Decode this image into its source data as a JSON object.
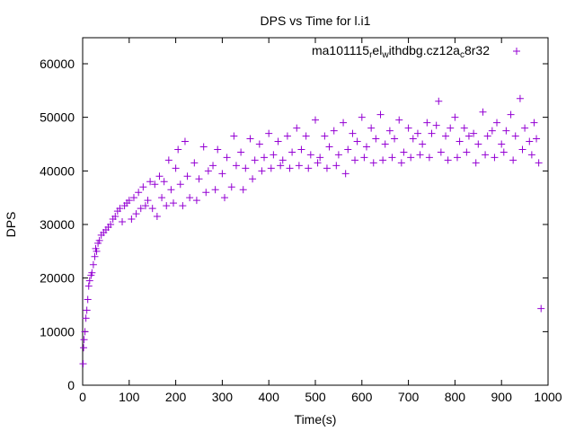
{
  "chart_data": {
    "type": "scatter",
    "title": "DPS vs Time for l.i1",
    "xlabel": "Time(s)",
    "ylabel": "DPS",
    "xlim": [
      0,
      1000
    ],
    "ylim": [
      0,
      65000
    ],
    "xticks": [
      0,
      100,
      200,
      300,
      400,
      500,
      600,
      700,
      800,
      900,
      1000
    ],
    "yticks": [
      0,
      10000,
      20000,
      30000,
      40000,
      50000,
      60000
    ],
    "grid": false,
    "legend_position": "top-right",
    "series": [
      {
        "name": "ma101115_rel_withdbg.cz12a_c8r32",
        "legend_label_parts": [
          "ma101115",
          "r",
          "el",
          "w",
          "ithdbg.cz12a",
          "c",
          "8r32"
        ],
        "color": "#9400D3",
        "marker": "plus",
        "points": [
          [
            1,
            4000
          ],
          [
            2,
            7000
          ],
          [
            3,
            8500
          ],
          [
            5,
            10000
          ],
          [
            7,
            12500
          ],
          [
            9,
            14000
          ],
          [
            11,
            16000
          ],
          [
            13,
            18500
          ],
          [
            15,
            19500
          ],
          [
            18,
            20500
          ],
          [
            20,
            21000
          ],
          [
            23,
            22500
          ],
          [
            26,
            24000
          ],
          [
            28,
            25500
          ],
          [
            30,
            25000
          ],
          [
            33,
            26500
          ],
          [
            36,
            27000
          ],
          [
            40,
            28000
          ],
          [
            45,
            28500
          ],
          [
            50,
            29000
          ],
          [
            55,
            29500
          ],
          [
            60,
            30000
          ],
          [
            65,
            31000
          ],
          [
            70,
            31500
          ],
          [
            75,
            32500
          ],
          [
            80,
            33000
          ],
          [
            85,
            30500
          ],
          [
            90,
            33500
          ],
          [
            95,
            34000
          ],
          [
            100,
            34500
          ],
          [
            105,
            31000
          ],
          [
            110,
            35000
          ],
          [
            115,
            32000
          ],
          [
            120,
            36000
          ],
          [
            125,
            33000
          ],
          [
            130,
            37000
          ],
          [
            135,
            33500
          ],
          [
            140,
            34500
          ],
          [
            145,
            38000
          ],
          [
            150,
            33000
          ],
          [
            155,
            37500
          ],
          [
            160,
            31500
          ],
          [
            165,
            39000
          ],
          [
            170,
            35000
          ],
          [
            175,
            38000
          ],
          [
            180,
            33500
          ],
          [
            185,
            42000
          ],
          [
            190,
            36500
          ],
          [
            195,
            34000
          ],
          [
            200,
            40500
          ],
          [
            205,
            44000
          ],
          [
            210,
            37500
          ],
          [
            215,
            33500
          ],
          [
            220,
            45500
          ],
          [
            225,
            39000
          ],
          [
            230,
            35000
          ],
          [
            240,
            41500
          ],
          [
            245,
            34500
          ],
          [
            250,
            38500
          ],
          [
            260,
            44500
          ],
          [
            265,
            36000
          ],
          [
            270,
            40000
          ],
          [
            280,
            41000
          ],
          [
            285,
            36500
          ],
          [
            290,
            44000
          ],
          [
            300,
            39500
          ],
          [
            305,
            35000
          ],
          [
            310,
            42500
          ],
          [
            320,
            37000
          ],
          [
            325,
            46500
          ],
          [
            330,
            41000
          ],
          [
            340,
            43500
          ],
          [
            345,
            36500
          ],
          [
            350,
            40500
          ],
          [
            360,
            46000
          ],
          [
            365,
            38500
          ],
          [
            370,
            42000
          ],
          [
            380,
            45000
          ],
          [
            385,
            40000
          ],
          [
            390,
            42500
          ],
          [
            400,
            47000
          ],
          [
            405,
            40500
          ],
          [
            410,
            43000
          ],
          [
            420,
            45500
          ],
          [
            425,
            41000
          ],
          [
            430,
            42000
          ],
          [
            440,
            46500
          ],
          [
            445,
            40500
          ],
          [
            450,
            43500
          ],
          [
            460,
            48000
          ],
          [
            465,
            41000
          ],
          [
            470,
            44000
          ],
          [
            480,
            46500
          ],
          [
            485,
            40500
          ],
          [
            490,
            43000
          ],
          [
            500,
            49500
          ],
          [
            505,
            41500
          ],
          [
            510,
            42500
          ],
          [
            520,
            46500
          ],
          [
            525,
            40500
          ],
          [
            530,
            44500
          ],
          [
            540,
            47500
          ],
          [
            545,
            41000
          ],
          [
            550,
            43000
          ],
          [
            560,
            49000
          ],
          [
            565,
            39500
          ],
          [
            570,
            44000
          ],
          [
            580,
            47000
          ],
          [
            585,
            42000
          ],
          [
            590,
            45500
          ],
          [
            600,
            50000
          ],
          [
            605,
            42500
          ],
          [
            610,
            44500
          ],
          [
            620,
            48000
          ],
          [
            625,
            41500
          ],
          [
            630,
            46000
          ],
          [
            640,
            50500
          ],
          [
            645,
            42000
          ],
          [
            650,
            45000
          ],
          [
            660,
            47500
          ],
          [
            665,
            42500
          ],
          [
            670,
            46000
          ],
          [
            680,
            49500
          ],
          [
            685,
            41500
          ],
          [
            690,
            43500
          ],
          [
            700,
            48000
          ],
          [
            705,
            42500
          ],
          [
            710,
            46000
          ],
          [
            720,
            47000
          ],
          [
            725,
            43000
          ],
          [
            730,
            45000
          ],
          [
            740,
            49000
          ],
          [
            745,
            42500
          ],
          [
            750,
            47000
          ],
          [
            760,
            48500
          ],
          [
            765,
            53000
          ],
          [
            770,
            43500
          ],
          [
            780,
            46500
          ],
          [
            785,
            42000
          ],
          [
            790,
            48000
          ],
          [
            800,
            50000
          ],
          [
            805,
            42500
          ],
          [
            810,
            45500
          ],
          [
            820,
            48000
          ],
          [
            825,
            43500
          ],
          [
            830,
            46500
          ],
          [
            840,
            47000
          ],
          [
            845,
            41500
          ],
          [
            850,
            45000
          ],
          [
            860,
            51000
          ],
          [
            865,
            43000
          ],
          [
            870,
            46500
          ],
          [
            880,
            47500
          ],
          [
            885,
            42500
          ],
          [
            890,
            49000
          ],
          [
            900,
            45000
          ],
          [
            905,
            43500
          ],
          [
            910,
            47500
          ],
          [
            920,
            50500
          ],
          [
            925,
            42000
          ],
          [
            930,
            46500
          ],
          [
            940,
            53500
          ],
          [
            945,
            44000
          ],
          [
            950,
            48000
          ],
          [
            960,
            45500
          ],
          [
            965,
            43000
          ],
          [
            970,
            49000
          ],
          [
            975,
            46000
          ],
          [
            980,
            41500
          ],
          [
            985,
            14300
          ]
        ]
      }
    ]
  }
}
